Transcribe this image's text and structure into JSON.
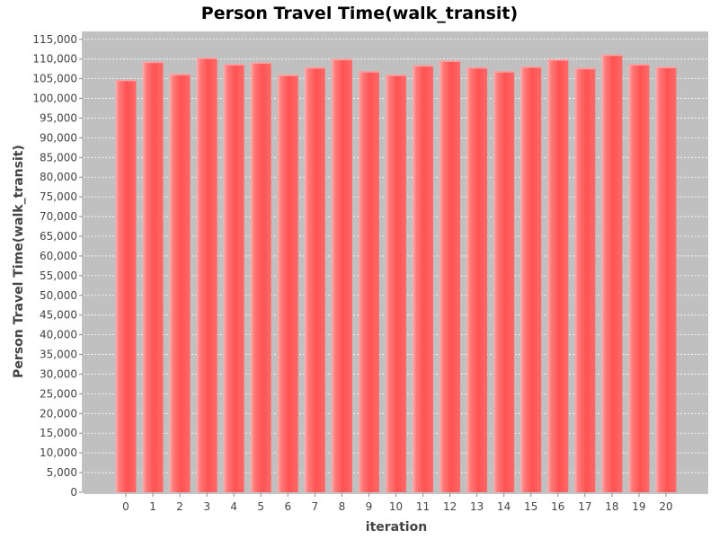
{
  "chart_data": {
    "type": "bar",
    "title": "Person Travel Time(walk_transit)",
    "xlabel": "iteration",
    "ylabel": "Person Travel Time(walk_transit)",
    "categories": [
      "0",
      "1",
      "2",
      "3",
      "4",
      "5",
      "6",
      "7",
      "8",
      "9",
      "10",
      "11",
      "12",
      "13",
      "14",
      "15",
      "16",
      "17",
      "18",
      "19",
      "20"
    ],
    "values": [
      104700,
      109300,
      106200,
      110300,
      108700,
      109100,
      106000,
      107900,
      110000,
      106900,
      106000,
      108400,
      109600,
      107900,
      106900,
      108100,
      109900,
      107700,
      111100,
      108700,
      108000
    ],
    "ylim": [
      0,
      117000
    ],
    "yticks": [
      0,
      5000,
      10000,
      15000,
      20000,
      25000,
      30000,
      35000,
      40000,
      45000,
      50000,
      55000,
      60000,
      65000,
      70000,
      75000,
      80000,
      85000,
      90000,
      95000,
      100000,
      105000,
      110000,
      115000
    ],
    "grid": true,
    "legend": "none",
    "colors": {
      "bar": "#ff5555",
      "bar_highlight": "#ffa0a0",
      "plot_background": "#c0c0c0",
      "gridline": "#ffffff",
      "axis": "#888888"
    }
  }
}
